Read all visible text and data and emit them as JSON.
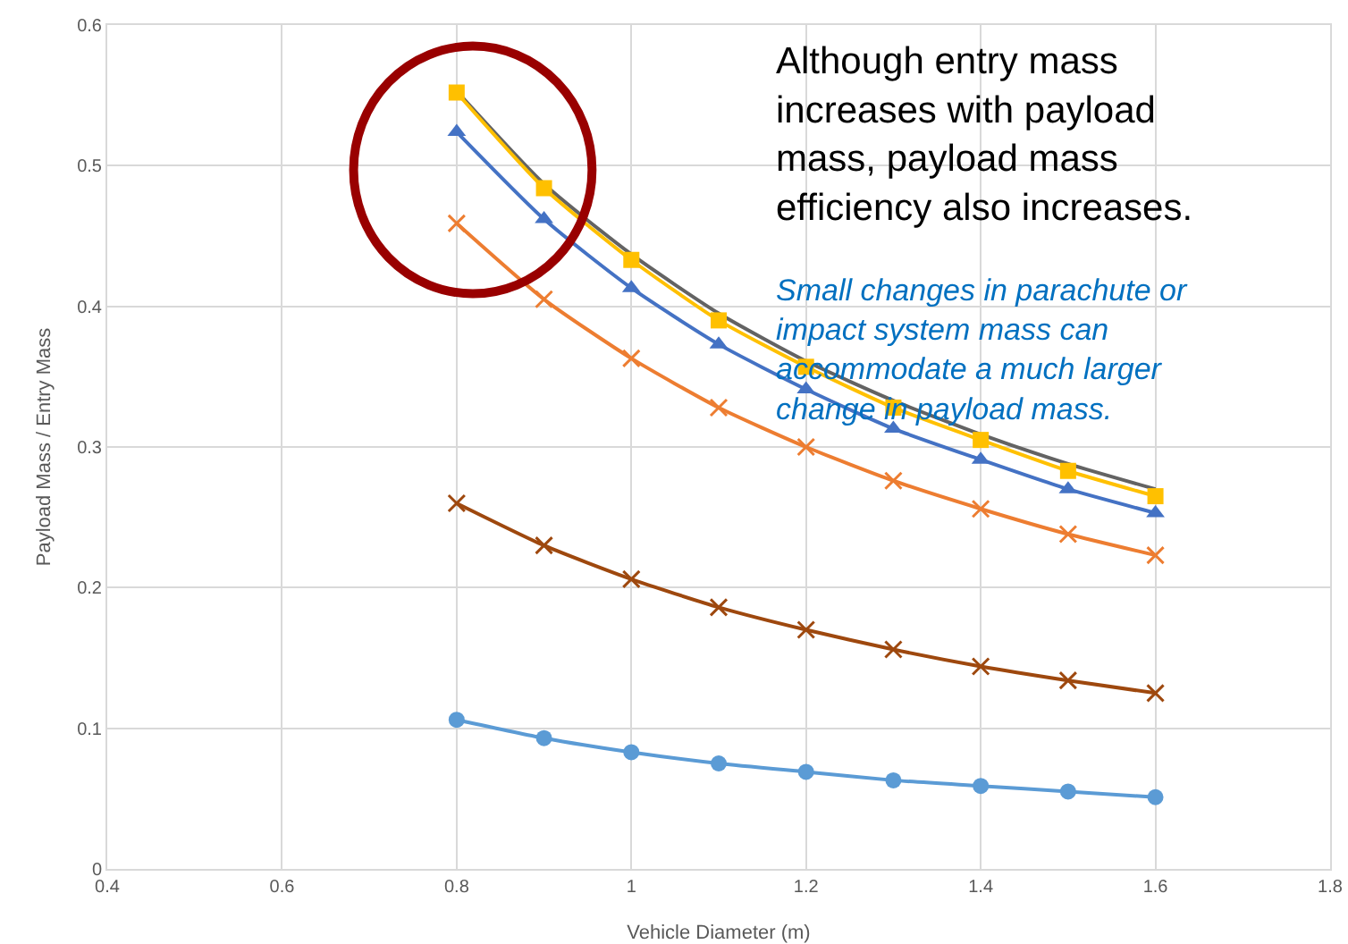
{
  "chart_data": {
    "type": "line",
    "xlabel": "Vehicle Diameter (m)",
    "ylabel": "Payload Mass / Entry Mass",
    "x": [
      0.8,
      0.9,
      1.0,
      1.1,
      1.2,
      1.3,
      1.4,
      1.5,
      1.6
    ],
    "series": [
      {
        "color": "#636363",
        "marker": "none",
        "values": [
          0.553,
          0.487,
          0.437,
          0.395,
          0.361,
          0.333,
          0.309,
          0.288,
          0.27
        ]
      },
      {
        "color": "#ffc000",
        "marker": "square",
        "values": [
          0.552,
          0.484,
          0.433,
          0.39,
          0.357,
          0.328,
          0.305,
          0.283,
          0.265
        ]
      },
      {
        "color": "#4472c4",
        "marker": "triangle",
        "values": [
          0.524,
          0.462,
          0.413,
          0.373,
          0.341,
          0.313,
          0.291,
          0.27,
          0.253
        ]
      },
      {
        "color": "#ed7d31",
        "marker": "cross",
        "values": [
          0.459,
          0.405,
          0.363,
          0.328,
          0.3,
          0.276,
          0.256,
          0.238,
          0.223
        ]
      },
      {
        "color": "#9e480e",
        "marker": "cross",
        "values": [
          0.26,
          0.23,
          0.206,
          0.186,
          0.17,
          0.156,
          0.144,
          0.134,
          0.125
        ]
      },
      {
        "color": "#5b9bd5",
        "marker": "circle",
        "values": [
          0.106,
          0.093,
          0.083,
          0.075,
          0.069,
          0.063,
          0.059,
          0.055,
          0.051
        ]
      }
    ],
    "xlim": [
      0.4,
      1.8
    ],
    "xticks": [
      0.4,
      0.6,
      0.8,
      1,
      1.2,
      1.4,
      1.6,
      1.8
    ],
    "ylim": [
      0,
      0.6
    ],
    "yticks": [
      0,
      0.1,
      0.2,
      0.3,
      0.4,
      0.5,
      0.6
    ],
    "grid": true,
    "line_style": "solid",
    "annotations": [
      "Although entry mass increases with payload mass, payload mass efficiency also increases.",
      "Small changes in parachute or impact system mass can accommodate a much larger change in payload mass."
    ]
  }
}
